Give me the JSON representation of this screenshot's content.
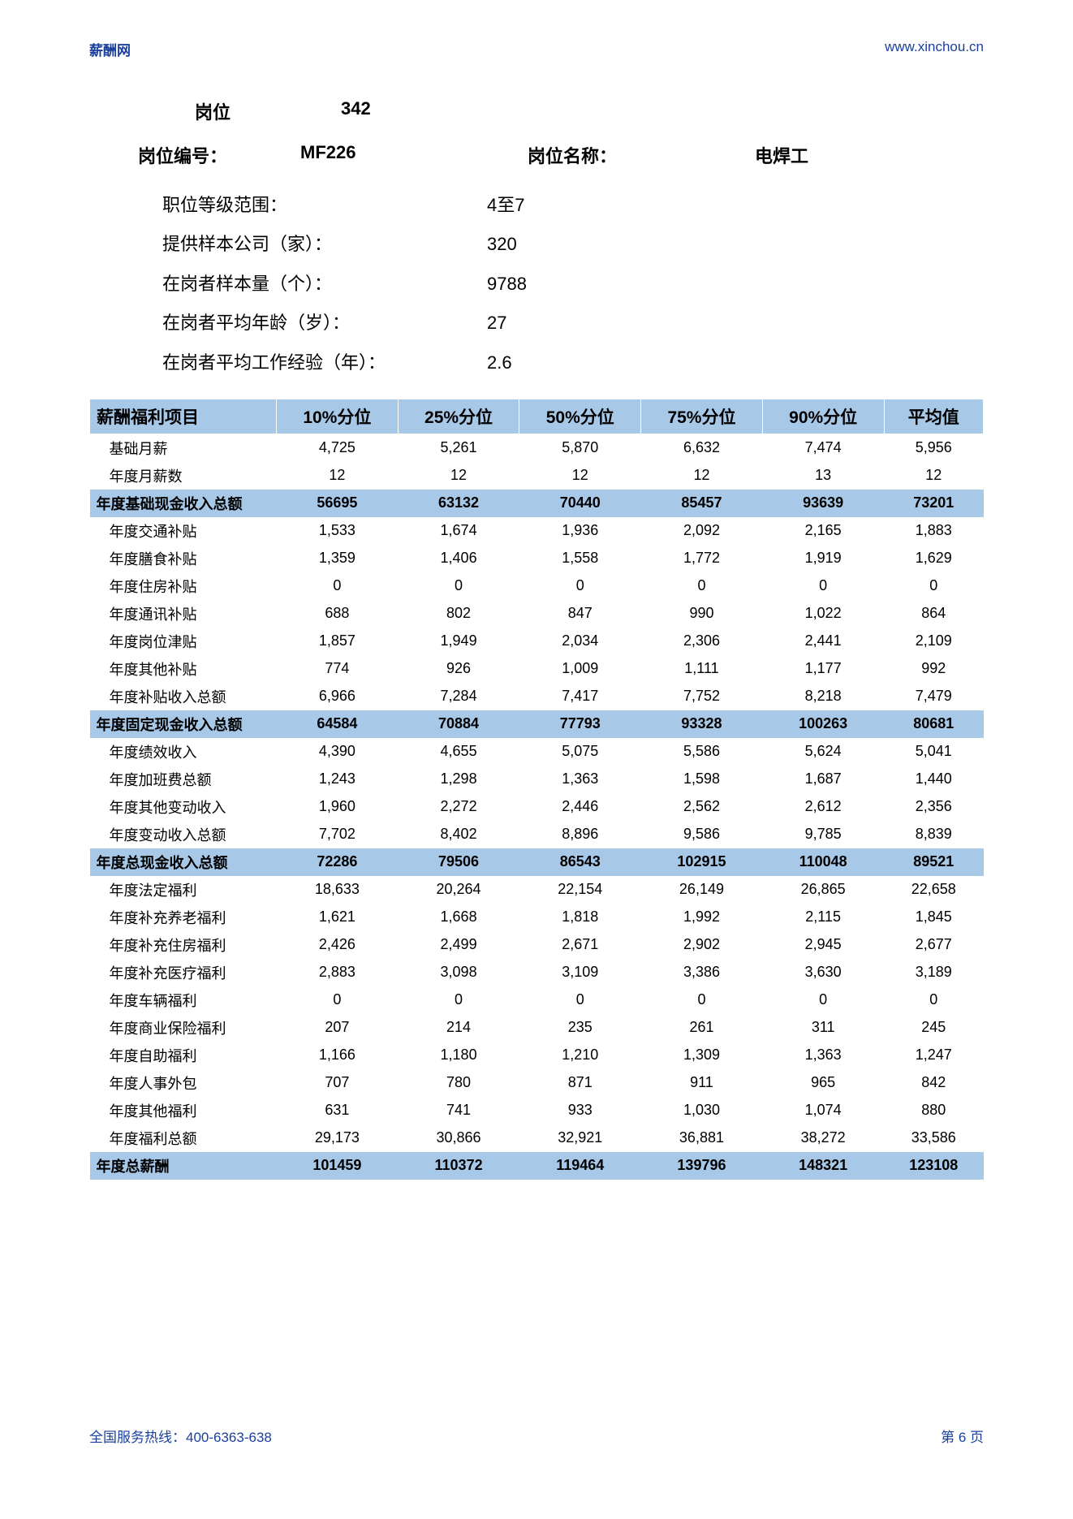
{
  "header": {
    "site_name": "薪酬网",
    "site_url": "www.xinchou.cn"
  },
  "position": {
    "label_gangwei": "岗位",
    "gangwei_num": "342",
    "label_code": "岗位编号：",
    "code": "MF226",
    "label_name": "岗位名称：",
    "name": "电焊工"
  },
  "info": {
    "rows": [
      {
        "label": "职位等级范围：",
        "value": "4至7"
      },
      {
        "label": "提供样本公司（家）：",
        "value": "320"
      },
      {
        "label": "在岗者样本量（个）：",
        "value": "9788"
      },
      {
        "label": "在岗者平均年龄（岁）：",
        "value": "27"
      },
      {
        "label": "在岗者平均工作经验（年）：",
        "value": "2.6"
      }
    ]
  },
  "table": {
    "columns": [
      "薪酬福利项目",
      "10%分位",
      "25%分位",
      "50%分位",
      "75%分位",
      "90%分位",
      "平均值"
    ],
    "header_bg": "#a8c8e8",
    "text_color": "#000000",
    "rows": [
      {
        "type": "d",
        "cells": [
          "基础月薪",
          "4,725",
          "5,261",
          "5,870",
          "6,632",
          "7,474",
          "5,956"
        ]
      },
      {
        "type": "d",
        "cells": [
          "年度月薪数",
          "12",
          "12",
          "12",
          "12",
          "13",
          "12"
        ]
      },
      {
        "type": "s",
        "cells": [
          "年度基础现金收入总额",
          "56695",
          "63132",
          "70440",
          "85457",
          "93639",
          "73201"
        ]
      },
      {
        "type": "d",
        "cells": [
          "年度交通补贴",
          "1,533",
          "1,674",
          "1,936",
          "2,092",
          "2,165",
          "1,883"
        ]
      },
      {
        "type": "d",
        "cells": [
          "年度膳食补贴",
          "1,359",
          "1,406",
          "1,558",
          "1,772",
          "1,919",
          "1,629"
        ]
      },
      {
        "type": "d",
        "cells": [
          "年度住房补贴",
          "0",
          "0",
          "0",
          "0",
          "0",
          "0"
        ]
      },
      {
        "type": "d",
        "cells": [
          "年度通讯补贴",
          "688",
          "802",
          "847",
          "990",
          "1,022",
          "864"
        ]
      },
      {
        "type": "d",
        "cells": [
          "年度岗位津贴",
          "1,857",
          "1,949",
          "2,034",
          "2,306",
          "2,441",
          "2,109"
        ]
      },
      {
        "type": "d",
        "cells": [
          "年度其他补贴",
          "774",
          "926",
          "1,009",
          "1,111",
          "1,177",
          "992"
        ]
      },
      {
        "type": "d",
        "cells": [
          "年度补贴收入总额",
          "6,966",
          "7,284",
          "7,417",
          "7,752",
          "8,218",
          "7,479"
        ]
      },
      {
        "type": "s",
        "cells": [
          "年度固定现金收入总额",
          "64584",
          "70884",
          "77793",
          "93328",
          "100263",
          "80681"
        ]
      },
      {
        "type": "d",
        "cells": [
          "年度绩效收入",
          "4,390",
          "4,655",
          "5,075",
          "5,586",
          "5,624",
          "5,041"
        ]
      },
      {
        "type": "d",
        "cells": [
          "年度加班费总额",
          "1,243",
          "1,298",
          "1,363",
          "1,598",
          "1,687",
          "1,440"
        ]
      },
      {
        "type": "d",
        "cells": [
          "年度其他变动收入",
          "1,960",
          "2,272",
          "2,446",
          "2,562",
          "2,612",
          "2,356"
        ]
      },
      {
        "type": "d",
        "cells": [
          "年度变动收入总额",
          "7,702",
          "8,402",
          "8,896",
          "9,586",
          "9,785",
          "8,839"
        ]
      },
      {
        "type": "s",
        "cells": [
          "年度总现金收入总额",
          "72286",
          "79506",
          "86543",
          "102915",
          "110048",
          "89521"
        ]
      },
      {
        "type": "d",
        "cells": [
          "年度法定福利",
          "18,633",
          "20,264",
          "22,154",
          "26,149",
          "26,865",
          "22,658"
        ]
      },
      {
        "type": "d",
        "cells": [
          "年度补充养老福利",
          "1,621",
          "1,668",
          "1,818",
          "1,992",
          "2,115",
          "1,845"
        ]
      },
      {
        "type": "d",
        "cells": [
          "年度补充住房福利",
          "2,426",
          "2,499",
          "2,671",
          "2,902",
          "2,945",
          "2,677"
        ]
      },
      {
        "type": "d",
        "cells": [
          "年度补充医疗福利",
          "2,883",
          "3,098",
          "3,109",
          "3,386",
          "3,630",
          "3,189"
        ]
      },
      {
        "type": "d",
        "cells": [
          "年度车辆福利",
          "0",
          "0",
          "0",
          "0",
          "0",
          "0"
        ]
      },
      {
        "type": "d",
        "cells": [
          "年度商业保险福利",
          "207",
          "214",
          "235",
          "261",
          "311",
          "245"
        ]
      },
      {
        "type": "d",
        "cells": [
          "年度自助福利",
          "1,166",
          "1,180",
          "1,210",
          "1,309",
          "1,363",
          "1,247"
        ]
      },
      {
        "type": "d",
        "cells": [
          "年度人事外包",
          "707",
          "780",
          "871",
          "911",
          "965",
          "842"
        ]
      },
      {
        "type": "d",
        "cells": [
          "年度其他福利",
          "631",
          "741",
          "933",
          "1,030",
          "1,074",
          "880"
        ]
      },
      {
        "type": "d",
        "cells": [
          "年度福利总额",
          "29,173",
          "30,866",
          "32,921",
          "36,881",
          "38,272",
          "33,586"
        ]
      },
      {
        "type": "s",
        "cells": [
          "年度总薪酬",
          "101459",
          "110372",
          "119464",
          "139796",
          "148321",
          "123108"
        ]
      }
    ]
  },
  "footer": {
    "hotline": "全国服务热线：400-6363-638",
    "page": "第 6 页"
  }
}
